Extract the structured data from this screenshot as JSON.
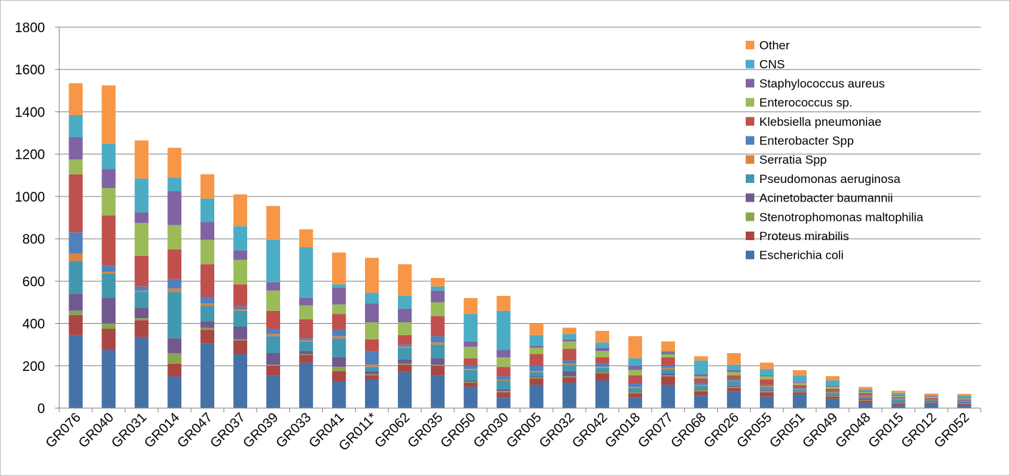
{
  "chart_data": {
    "type": "bar",
    "stacked": true,
    "title": "",
    "xlabel": "",
    "ylabel": "",
    "ylim": [
      0,
      1800
    ],
    "yticks": [
      0,
      200,
      400,
      600,
      800,
      1000,
      1200,
      1400,
      1600,
      1800
    ],
    "grid": "horizontal",
    "legend_position": "top-right",
    "categories": [
      "GR076",
      "GR040",
      "GR031",
      "GR014",
      "GR047",
      "GR037",
      "GR039",
      "GR033",
      "GR041",
      "GR011*",
      "GR062",
      "GR035",
      "GR050",
      "GR030",
      "GR005",
      "GR032",
      "GR042",
      "GR018",
      "GR077",
      "GR068",
      "GR026",
      "GR055",
      "GR051",
      "GR049",
      "GR048",
      "GR015",
      "GR012",
      "GR052"
    ],
    "series": [
      {
        "name": "Escherichia coli",
        "color": "#4572A7",
        "values": [
          345,
          275,
          335,
          150,
          305,
          255,
          155,
          215,
          125,
          135,
          170,
          155,
          100,
          50,
          110,
          120,
          130,
          50,
          110,
          60,
          80,
          55,
          65,
          45,
          25,
          15,
          20,
          15
        ]
      },
      {
        "name": "Proteus mirabilis",
        "color": "#AA4643",
        "values": [
          95,
          100,
          80,
          60,
          65,
          65,
          45,
          35,
          50,
          20,
          35,
          45,
          20,
          25,
          30,
          25,
          35,
          20,
          40,
          20,
          15,
          20,
          10,
          10,
          10,
          8,
          6,
          6
        ]
      },
      {
        "name": "Stenotrophomonas maltophilia",
        "color": "#89A54E",
        "values": [
          20,
          25,
          10,
          50,
          10,
          5,
          5,
          5,
          20,
          5,
          5,
          5,
          5,
          5,
          5,
          5,
          5,
          5,
          5,
          5,
          5,
          5,
          3,
          3,
          3,
          3,
          2,
          2
        ]
      },
      {
        "name": "Acinetobacter baumannii",
        "color": "#71588F",
        "values": [
          80,
          120,
          50,
          70,
          30,
          60,
          55,
          15,
          45,
          15,
          20,
          30,
          5,
          10,
          5,
          25,
          5,
          5,
          10,
          5,
          5,
          5,
          3,
          5,
          8,
          5,
          4,
          4
        ]
      },
      {
        "name": "Pseudomonas aeruginosa",
        "color": "#4198AF",
        "values": [
          155,
          115,
          75,
          220,
          75,
          75,
          80,
          45,
          90,
          20,
          55,
          65,
          50,
          40,
          20,
          30,
          15,
          15,
          20,
          15,
          20,
          15,
          5,
          10,
          8,
          10,
          5,
          5
        ]
      },
      {
        "name": "Serratia Spp",
        "color": "#DB843D",
        "values": [
          35,
          10,
          5,
          15,
          10,
          5,
          10,
          5,
          10,
          10,
          5,
          10,
          5,
          5,
          5,
          5,
          5,
          5,
          5,
          5,
          5,
          5,
          3,
          3,
          3,
          3,
          2,
          2
        ]
      },
      {
        "name": "Enterobacter Spp",
        "color": "#4F81BD",
        "values": [
          100,
          30,
          20,
          45,
          30,
          15,
          25,
          10,
          30,
          65,
          10,
          30,
          15,
          15,
          25,
          15,
          15,
          15,
          10,
          10,
          10,
          5,
          5,
          5,
          5,
          3,
          3,
          3
        ]
      },
      {
        "name": "Klebsiella pneumoniae",
        "color": "#C0504D",
        "values": [
          275,
          235,
          145,
          140,
          155,
          105,
          85,
          90,
          75,
          55,
          45,
          95,
          35,
          45,
          55,
          55,
          30,
          40,
          40,
          20,
          15,
          25,
          15,
          10,
          10,
          5,
          6,
          4
        ]
      },
      {
        "name": "Enterococcus sp.",
        "color": "#9BBB59",
        "values": [
          70,
          130,
          155,
          115,
          115,
          115,
          95,
          65,
          45,
          80,
          60,
          65,
          55,
          45,
          30,
          35,
          30,
          25,
          15,
          10,
          15,
          15,
          10,
          10,
          5,
          5,
          5,
          5
        ]
      },
      {
        "name": "Staphylococcus aureus",
        "color": "#8064A2",
        "values": [
          105,
          90,
          50,
          160,
          85,
          45,
          40,
          35,
          80,
          90,
          65,
          55,
          25,
          35,
          10,
          10,
          15,
          20,
          10,
          10,
          10,
          5,
          5,
          5,
          5,
          5,
          3,
          3
        ]
      },
      {
        "name": "CNS",
        "color": "#4BACC6",
        "values": [
          105,
          120,
          160,
          65,
          110,
          115,
          200,
          240,
          15,
          50,
          60,
          20,
          130,
          185,
          50,
          25,
          25,
          35,
          5,
          65,
          25,
          30,
          30,
          25,
          8,
          10,
          5,
          10
        ]
      },
      {
        "name": "Other",
        "color": "#F79646",
        "values": [
          150,
          275,
          180,
          140,
          115,
          150,
          160,
          85,
          150,
          165,
          150,
          40,
          75,
          70,
          55,
          30,
          55,
          105,
          45,
          20,
          55,
          30,
          25,
          20,
          10,
          10,
          8,
          8
        ]
      }
    ]
  }
}
